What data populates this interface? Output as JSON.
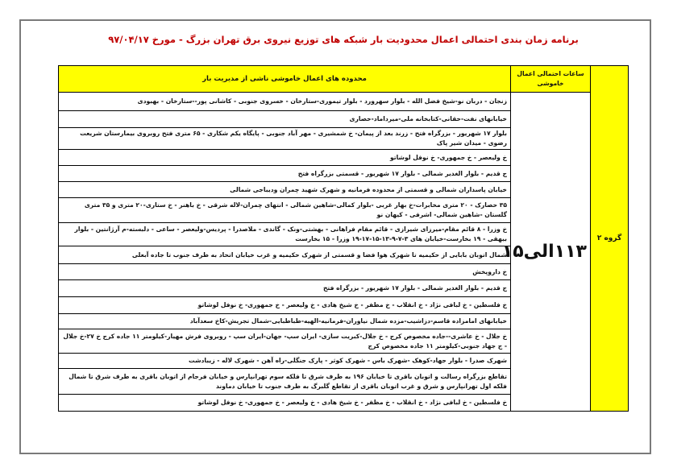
{
  "title": "برنامه زمان بندی احتمالی اعمال محدودیت بار شبکه های توزیع نیروی برق تهران بزرگ - مورخ ۹۷/۰۴/۱۷",
  "header": {
    "hours": "ساعات احتمالی اعمال خاموشی",
    "areas": "محدوده های اعمال خاموشی ناشی از مدیریت بار"
  },
  "group": "گروه ۲",
  "time": "۱۱۳الی۱۵",
  "colors": {
    "header_bg": "#ffff00",
    "title": "#c00000"
  },
  "rows": [
    "زنجان - دربان نو-شیخ فضل الله - بلوار سهرورد - بلوار تیموری-ستارخان - خسروی جنوبی - کاشانی پور--ستارخان - بهبودی",
    "خیابانهای نفت-حقانی-کتابخانه ملی-میرداماد-حصاری",
    "بلوار ۱۷ شهریور - بزرگراه فتح - زرند بعد از پیمان- خ شمشیری - مهر آباد جنوبی - پایگاه یکم شکاری - ۶۵ متری فتح روبروی بیمارستان شریعت رضوی - میدان شیر پاک",
    "خ ولیعصر - خ جمهوری- خ نوفل لوشاتو",
    "ج قدیم - بلوار الغدیر شمالی - بلوار ۱۷ شهریور - قسمتی بزرگراه فتح",
    "خیابان پاسداران شمالی و قسمتی از محدوده فرمانیه و شهرک شهید چمران ودیباجی شمالی",
    "۳۵ حصارک - ۲۰ متری مخابرات-خ بهار غربی -بلوار کمالی-شاهین شمالی - انتهای چمران-لاله شرقی - خ باهنر - خ ستاری-۲۰ متری و ۳۵ متری گلستان -شاهین شمالی- اشرفی - کیهان نو",
    "خ وزرا - ۸ قائم مقام-میرزای شیرازی - قائم مقام فراهانی - بهشتی-ونک - گاندی - ملاصدرا - پردیس-ولیعصر - ساعی - دلبسته-م آرژانتین - بلوار بیهقی - ۱۹ بخارست-خیابان های ۳-۷-۹-۱۳-۱۵-۱۷-۱۹ وزرا - ۱۵ بخارست",
    "شمال اتوبان بابایی از حکیمیه تا شهرک هوا فضا و قسمتی از شهرک حکیمیه و غرب خیابان اتحاد به طرف جنوب تا جاده آبعلی",
    "خ داروپخش",
    "ج قدیم - بلوار الغدیر شمالی - بلوار ۱۷ شهریور - بزرگراه فتح",
    "خ فلسطین - خ لبافی نژاد - خ انقلاب - خ مظفر - خ شیخ هادی - خ ولیعصر - خ جمهوری- خ نوفل لوشاتو",
    "خیابانهای امامزاده قاسم-دزاشیب-مزده شمال نیاوران-فرمانیه-الهیه-طباطبایی-شمال تجریش-کاخ سعدآباد",
    "خ جلال - خ عاشری--جاده مخصوص کرج - خ جلال-کبریت سازی- ایران سپ- جهان-ایران سپ - روبروی فرش مهیار-کیلومتر ۱۱ جاده کرج خ ۲۷-خ جلال - ج جهاد جنوبی-کیلومتر ۱۱ جاده مخصوص کرج",
    "شهرک صدرا - بلوار جهاد-کوهک -شهرک باس - شهرک کوثر - پارک جنگلی-راه آهن - شهرک لاله - زیبادشت",
    "تقاطع بزرگراه رسالت و اتوبان باقری تا خیابان ۱۹۶ به طرف شرق تا فلکه سوم تهرانپارس و خیابان فرجام از اتوبان باقری به طرف شرق تا شمال فلکه اول تهرانپارس و شرق و غرب اتوبان باقری از تقاطع گلبرگ به طرف جنوب تا خیابان دماوند",
    "خ فلسطین - خ لبافی نژاد - خ انقلاب - خ مظفر - خ شیخ هادی - خ ولیعصر - خ جمهوری- خ نوفل لوشاتو"
  ]
}
